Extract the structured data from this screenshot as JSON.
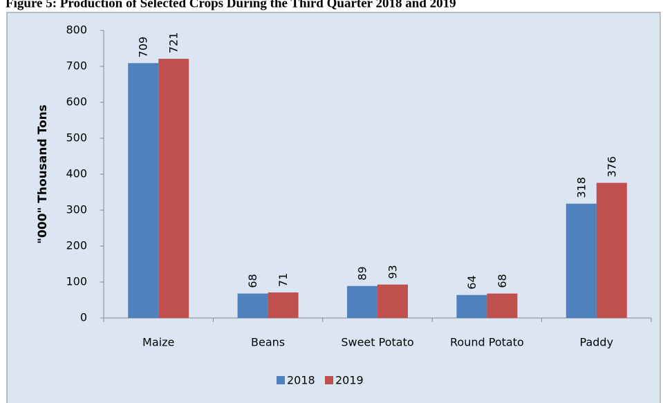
{
  "chart_data": {
    "type": "bar",
    "title": "Figure 5: Production of Selected Crops During the Third Quarter 2018 and 2019",
    "y_label": "\"000\" Thousand Tons",
    "categories": [
      "Maize",
      "Beans",
      "Sweet Potato",
      "Round Potato",
      "Paddy"
    ],
    "series": [
      {
        "name": "2018",
        "color": "#4f81bd",
        "values": [
          709,
          68,
          89,
          64,
          318
        ]
      },
      {
        "name": "2019",
        "color": "#c0504d",
        "values": [
          721,
          71,
          93,
          68,
          376
        ]
      }
    ],
    "ylim": [
      0,
      800
    ],
    "yticks": [
      0,
      100,
      200,
      300,
      400,
      500,
      600,
      700,
      800
    ],
    "legend": "bottom",
    "grid": false
  }
}
